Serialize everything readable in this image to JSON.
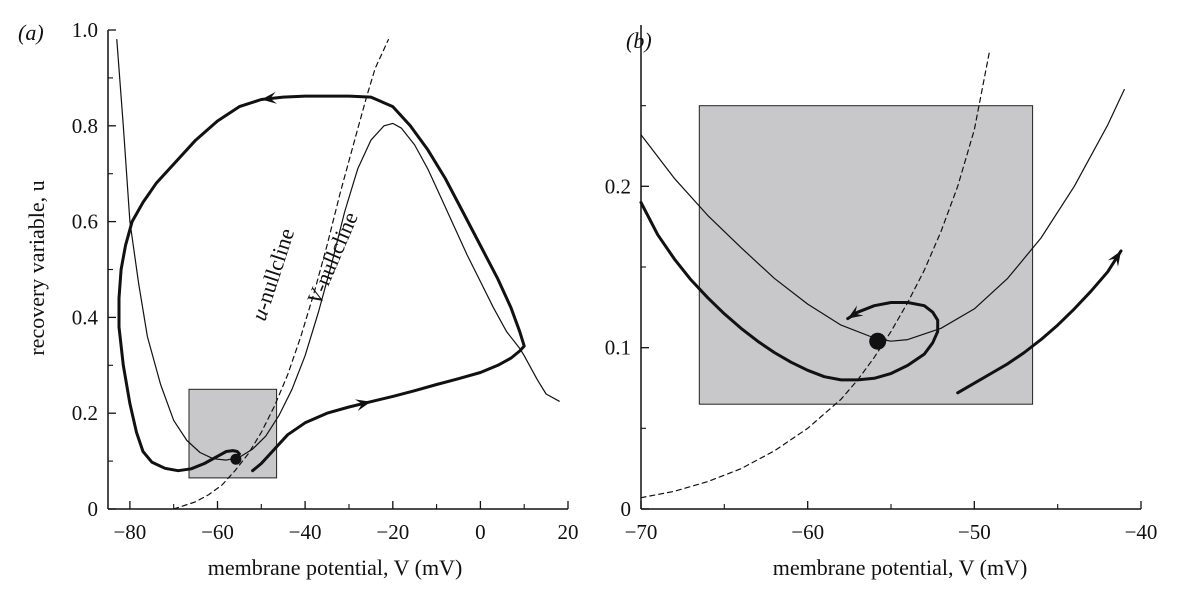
{
  "chart_data": [
    {
      "panel": "(a)",
      "type": "line",
      "xlabel": "membrane potential, V (mV)",
      "ylabel": "recovery variable, u",
      "xlim": [
        -85,
        20
      ],
      "ylim": [
        0,
        1.0
      ],
      "xticks": [
        "−80",
        "−60",
        "−40",
        "−20",
        "0",
        "20"
      ],
      "xtick_values": [
        -80,
        -60,
        -40,
        -20,
        0,
        20
      ],
      "yticks": [
        "0",
        "0.2",
        "0.4",
        "0.6",
        "0.8",
        "1.0"
      ],
      "ytick_values": [
        0,
        0.2,
        0.4,
        0.6,
        0.8,
        1.0
      ],
      "grid": false,
      "series": [
        {
          "name": "V-nullcline",
          "style": "thin-solid",
          "x": [
            -83,
            -81.5,
            -80,
            -78,
            -76,
            -73,
            -70,
            -67,
            -64,
            -61,
            -58,
            -55,
            -52,
            -49,
            -46,
            -43,
            -40,
            -37,
            -34,
            -31,
            -28,
            -25,
            -22,
            -20,
            -18,
            -15,
            -12,
            -9,
            -6,
            -3,
            0,
            3,
            6,
            9,
            10,
            13,
            15,
            18
          ],
          "y": [
            0.98,
            0.8,
            0.6,
            0.47,
            0.36,
            0.26,
            0.185,
            0.143,
            0.118,
            0.105,
            0.102,
            0.108,
            0.125,
            0.152,
            0.195,
            0.25,
            0.32,
            0.41,
            0.51,
            0.62,
            0.71,
            0.77,
            0.8,
            0.805,
            0.795,
            0.76,
            0.71,
            0.65,
            0.59,
            0.53,
            0.475,
            0.42,
            0.37,
            0.335,
            0.32,
            0.27,
            0.24,
            0.225
          ]
        },
        {
          "name": "u-nullcline",
          "style": "dashed",
          "x": [
            -70,
            -65,
            -62,
            -59,
            -56,
            -53,
            -50,
            -47,
            -44,
            -41,
            -38,
            -35,
            -32,
            -29,
            -26,
            -24,
            -22,
            -21
          ],
          "y": [
            0.0,
            0.015,
            0.03,
            0.05,
            0.08,
            0.115,
            0.16,
            0.215,
            0.28,
            0.36,
            0.45,
            0.55,
            0.66,
            0.76,
            0.86,
            0.92,
            0.96,
            0.98
          ]
        },
        {
          "name": "",
          "style": "trajectory",
          "x": [
            -52,
            -50,
            -47,
            -44,
            -40,
            -35,
            -30,
            -25,
            -20,
            -15,
            -10,
            -5,
            0,
            4,
            7,
            9,
            10,
            9,
            7,
            4,
            0,
            -4,
            -8,
            -12,
            -16,
            -20,
            -25,
            -30,
            -35,
            -40,
            -45,
            -50,
            -55,
            -60,
            -65,
            -70,
            -74,
            -77,
            -79.5,
            -81,
            -82,
            -82.5,
            -82.5,
            -81.5,
            -80,
            -78.5,
            -77,
            -75,
            -72,
            -69,
            -66,
            -63,
            -60,
            -58,
            -56.5,
            -55.5,
            -55,
            -55.3,
            -55.8
          ],
          "y": [
            0.08,
            0.095,
            0.125,
            0.155,
            0.18,
            0.2,
            0.213,
            0.224,
            0.235,
            0.247,
            0.26,
            0.272,
            0.285,
            0.3,
            0.315,
            0.33,
            0.34,
            0.37,
            0.42,
            0.48,
            0.55,
            0.62,
            0.69,
            0.75,
            0.8,
            0.84,
            0.86,
            0.862,
            0.862,
            0.862,
            0.86,
            0.855,
            0.84,
            0.81,
            0.77,
            0.72,
            0.68,
            0.64,
            0.6,
            0.55,
            0.5,
            0.44,
            0.38,
            0.3,
            0.22,
            0.16,
            0.12,
            0.098,
            0.085,
            0.08,
            0.084,
            0.095,
            0.11,
            0.12,
            0.122,
            0.12,
            0.115,
            0.11,
            0.107
          ]
        }
      ],
      "arrows_at_index": [
        7,
        31
      ],
      "fixed_point": {
        "x": -55.8,
        "y": 0.104
      },
      "inset_box": {
        "x": [
          -66.5,
          -46.5
        ],
        "y": [
          0.065,
          0.25
        ]
      },
      "curve_labels": [
        {
          "text": "u",
          "italic": true
        },
        {
          "text": "-nullcline",
          "italic": false
        },
        {
          "text": "V",
          "italic": true
        },
        {
          "text": "-nullcline",
          "italic": false
        }
      ]
    },
    {
      "panel": "(b)",
      "type": "line",
      "xlabel": "membrane potential, V (mV)",
      "ylabel": "",
      "xlim": [
        -70,
        -40
      ],
      "ylim": [
        0,
        0.3
      ],
      "xticks": [
        "−70",
        "−60",
        "−50",
        "−40"
      ],
      "xtick_values": [
        -70,
        -60,
        -50,
        -40
      ],
      "yticks": [
        "0",
        "0.1",
        "0.2"
      ],
      "ytick_values": [
        0,
        0.1,
        0.2
      ],
      "grid": false,
      "series": [
        {
          "name": "V-nullcline",
          "style": "thin-solid",
          "x": [
            -70,
            -68,
            -66,
            -64,
            -62,
            -60,
            -58,
            -56,
            -55,
            -54,
            -52,
            -50,
            -48,
            -46,
            -44,
            -42,
            -41
          ],
          "y": [
            0.232,
            0.205,
            0.182,
            0.162,
            0.143,
            0.127,
            0.114,
            0.106,
            0.104,
            0.105,
            0.112,
            0.124,
            0.143,
            0.168,
            0.2,
            0.238,
            0.26
          ]
        },
        {
          "name": "u-nullcline",
          "style": "dashed",
          "x": [
            -70,
            -68,
            -66,
            -64,
            -62,
            -60,
            -58,
            -57,
            -56,
            -55,
            -54,
            -53,
            -52,
            -51,
            -50,
            -49.1
          ],
          "y": [
            0.007,
            0.011,
            0.017,
            0.025,
            0.036,
            0.05,
            0.068,
            0.08,
            0.094,
            0.11,
            0.128,
            0.148,
            0.172,
            0.2,
            0.235,
            0.283
          ]
        },
        {
          "name": "",
          "style": "trajectory",
          "x": [
            -70,
            -69,
            -68,
            -67,
            -66,
            -65,
            -64,
            -63,
            -62,
            -61,
            -60,
            -59,
            -58,
            -57,
            -56,
            -55,
            -54,
            -53,
            -52.5,
            -52.2,
            -52.2,
            -52.5,
            -53,
            -54,
            -55,
            -56,
            -57,
            -57.6
          ],
          "y": [
            0.19,
            0.17,
            0.155,
            0.142,
            0.131,
            0.121,
            0.112,
            0.104,
            0.097,
            0.091,
            0.086,
            0.082,
            0.08,
            0.08,
            0.081,
            0.084,
            0.089,
            0.096,
            0.103,
            0.11,
            0.117,
            0.122,
            0.126,
            0.128,
            0.128,
            0.126,
            0.122,
            0.118
          ]
        },
        {
          "name": "",
          "style": "trajectory",
          "x": [
            -51,
            -50,
            -49,
            -48,
            -47,
            -46,
            -45,
            -44,
            -43,
            -42,
            -41.2
          ],
          "y": [
            0.072,
            0.078,
            0.084,
            0.09,
            0.097,
            0.105,
            0.114,
            0.124,
            0.135,
            0.147,
            0.16
          ]
        }
      ],
      "fixed_point": {
        "x": -55.8,
        "y": 0.104
      },
      "inset_box": {
        "x": [
          -66.5,
          -46.5
        ],
        "y": [
          0.065,
          0.25
        ]
      }
    }
  ]
}
